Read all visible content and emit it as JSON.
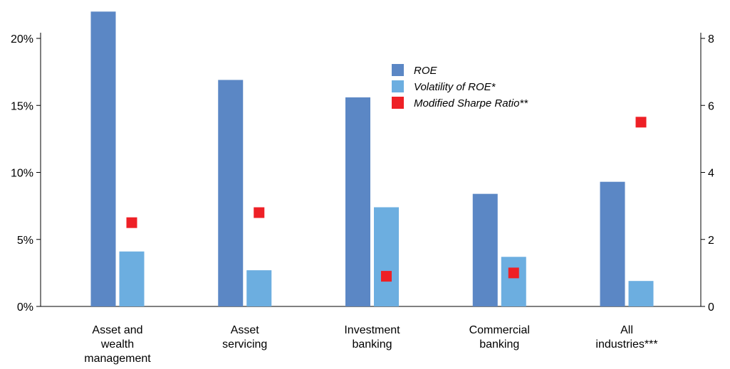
{
  "chart_data": {
    "type": "bar",
    "categories": [
      [
        "Asset and",
        "wealth",
        "management"
      ],
      [
        "Asset",
        "servicing"
      ],
      [
        "Investment",
        "banking"
      ],
      [
        "Commercial",
        "banking"
      ],
      [
        "All",
        "industries***"
      ]
    ],
    "series": [
      {
        "name": "ROE",
        "axis": "left",
        "kind": "bar",
        "color": "#5b87c5",
        "values": [
          22.0,
          16.9,
          15.6,
          8.4,
          9.3
        ]
      },
      {
        "name": "Volatility of ROE*",
        "axis": "left",
        "kind": "bar",
        "color": "#6caee0",
        "values": [
          4.1,
          2.7,
          7.4,
          3.7,
          1.9
        ]
      },
      {
        "name": "Modified Sharpe Ratio**",
        "axis": "right",
        "kind": "marker",
        "color": "#ee2026",
        "values": [
          2.5,
          2.8,
          0.9,
          1.0,
          5.5
        ]
      }
    ],
    "left_axis": {
      "ylim": [
        0,
        20
      ],
      "ticks": [
        0,
        5,
        10,
        15,
        20
      ],
      "tick_labels": [
        "0%",
        "5%",
        "10%",
        "15%",
        "20%"
      ]
    },
    "right_axis": {
      "ylim": [
        0,
        8
      ],
      "ticks": [
        0,
        2,
        4,
        6,
        8
      ],
      "tick_labels": [
        "0",
        "2",
        "4",
        "6",
        "8"
      ]
    },
    "title": "",
    "xlabel": "",
    "ylabel": "",
    "grid": false,
    "legend": "top-center"
  }
}
